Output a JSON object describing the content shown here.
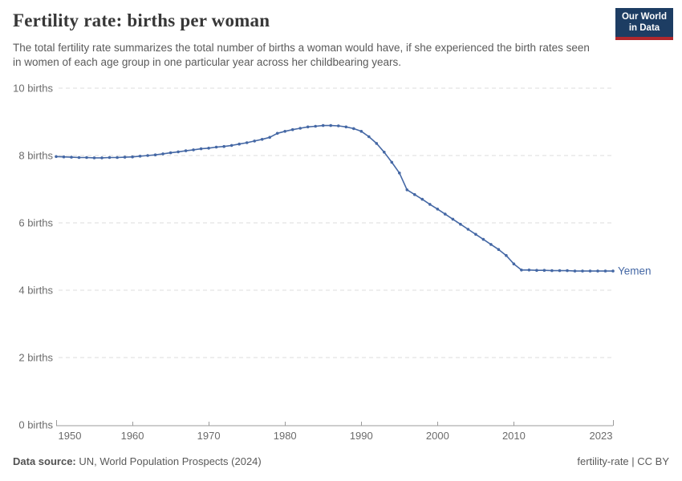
{
  "header": {
    "title": "Fertility rate: births per woman",
    "subtitle": "The total fertility rate summarizes the total number of births a woman would have, if she experienced the birth rates seen in women of each age group in one particular year across her childbearing years.",
    "logo": {
      "line1": "Our World",
      "line2": "in Data"
    }
  },
  "colors": {
    "line": "#4568a5",
    "grid": "#dedede",
    "axis": "#9b9b9b",
    "tick_label": "#6b6b6b",
    "logo_navy": "#1d3d63",
    "logo_red": "#b0282d"
  },
  "chart_data": {
    "type": "line",
    "title": "Fertility rate: births per woman",
    "ylabel": "",
    "xlabel": "",
    "ylim": [
      0,
      10
    ],
    "xlim": [
      1950,
      2023
    ],
    "grid": "horizontal-dashed",
    "legend_position": "end-of-line-label",
    "y_ticks": [
      {
        "value": 0,
        "label": "0 births"
      },
      {
        "value": 2,
        "label": "2 births"
      },
      {
        "value": 4,
        "label": "4 births"
      },
      {
        "value": 6,
        "label": "6 births"
      },
      {
        "value": 8,
        "label": "8 births"
      },
      {
        "value": 10,
        "label": "10 births"
      }
    ],
    "x_ticks": [
      1950,
      1960,
      1970,
      1980,
      1990,
      2000,
      2010,
      2023
    ],
    "series": [
      {
        "name": "Yemen",
        "x": [
          1950,
          1951,
          1952,
          1953,
          1954,
          1955,
          1956,
          1957,
          1958,
          1959,
          1960,
          1961,
          1962,
          1963,
          1964,
          1965,
          1966,
          1967,
          1968,
          1969,
          1970,
          1971,
          1972,
          1973,
          1974,
          1975,
          1976,
          1977,
          1978,
          1979,
          1980,
          1981,
          1982,
          1983,
          1984,
          1985,
          1986,
          1987,
          1988,
          1989,
          1990,
          1991,
          1992,
          1993,
          1994,
          1995,
          1996,
          1997,
          1998,
          1999,
          2000,
          2001,
          2002,
          2003,
          2004,
          2005,
          2006,
          2007,
          2008,
          2009,
          2010,
          2011,
          2012,
          2013,
          2014,
          2015,
          2016,
          2017,
          2018,
          2019,
          2020,
          2021,
          2022,
          2023
        ],
        "values": [
          7.97,
          7.96,
          7.95,
          7.94,
          7.94,
          7.93,
          7.93,
          7.94,
          7.94,
          7.95,
          7.96,
          7.98,
          8.0,
          8.02,
          8.05,
          8.08,
          8.11,
          8.14,
          8.17,
          8.2,
          8.22,
          8.25,
          8.27,
          8.3,
          8.34,
          8.38,
          8.43,
          8.48,
          8.54,
          8.66,
          8.72,
          8.77,
          8.81,
          8.85,
          8.87,
          8.89,
          8.89,
          8.88,
          8.85,
          8.8,
          8.72,
          8.56,
          8.36,
          8.1,
          7.8,
          7.48,
          6.98,
          6.84,
          6.7,
          6.55,
          6.41,
          6.26,
          6.11,
          5.96,
          5.81,
          5.66,
          5.51,
          5.36,
          5.21,
          5.03,
          4.78,
          4.6,
          4.6,
          4.59,
          4.59,
          4.58,
          4.58,
          4.58,
          4.57,
          4.57,
          4.57,
          4.57,
          4.57,
          4.57
        ]
      }
    ]
  },
  "footer": {
    "source_label": "Data source:",
    "source_value": " UN, World Population Prospects (2024)",
    "right": "fertility-rate | CC BY"
  }
}
